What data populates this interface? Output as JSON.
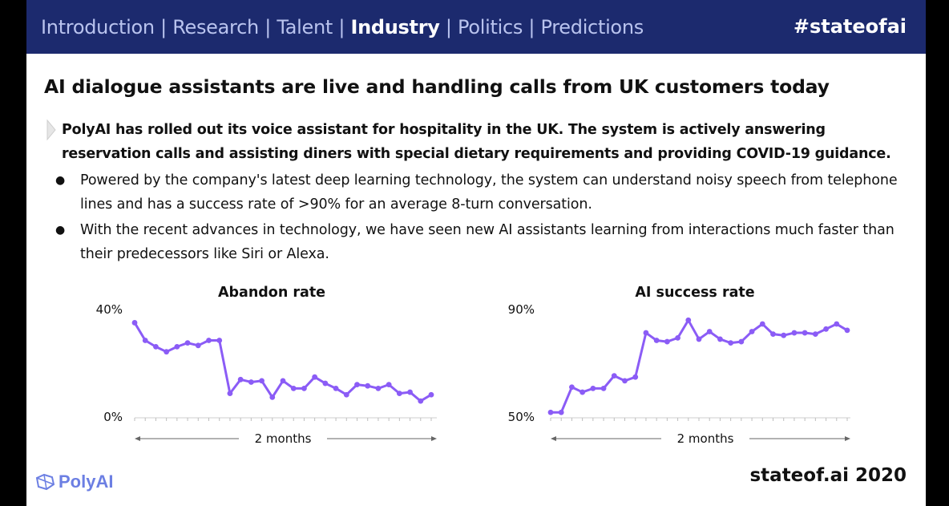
{
  "header": {
    "nav": [
      {
        "label": "Introduction",
        "active": false
      },
      {
        "label": "Research",
        "active": false
      },
      {
        "label": "Talent",
        "active": false
      },
      {
        "label": "Industry",
        "active": true
      },
      {
        "label": "Politics",
        "active": false
      },
      {
        "label": "Predictions",
        "active": false
      }
    ],
    "separator": " | ",
    "hashtag": "#stateofai"
  },
  "title": "AI dialogue assistants are live and handling calls from UK customers today",
  "lead": "PolyAI has rolled out its voice assistant for hospitality in the UK. The system is actively answering reservation calls and assisting diners with special dietary requirements and providing COVID-19 guidance.",
  "bullets": [
    "Powered by the company's latest deep learning technology, the system can understand noisy speech from telephone lines and has a success rate of >90% for an average 8-turn conversation.",
    "With the recent advances in technology, we have seen new AI assistants learning from interactions much faster than their predecessors like Siri or Alexa."
  ],
  "logo_text": "PolyAI",
  "footer": "stateof.ai 2020",
  "colors": {
    "line": "#8b5cf6",
    "header_bg": "#1c2a6e",
    "logo": "#6c7fe3"
  },
  "chart_data": [
    {
      "type": "line",
      "title": "Abandon rate",
      "ytick_labels": [
        "40%",
        "0%"
      ],
      "ylim": [
        0,
        40
      ],
      "x_label": "2 months",
      "values": [
        37,
        30,
        27.5,
        25.5,
        27.5,
        29,
        28,
        30,
        30,
        9,
        14.5,
        13.5,
        14,
        7.5,
        14,
        11,
        11,
        15.5,
        13,
        11,
        8.5,
        12.5,
        12,
        11,
        12.5,
        9,
        9.5,
        6,
        8.5
      ]
    },
    {
      "type": "line",
      "title": "AI success rate",
      "ytick_labels": [
        "90%",
        "50%"
      ],
      "ylim": [
        50,
        90
      ],
      "x_label": "2 months",
      "values": [
        51.5,
        51.5,
        61.5,
        59.5,
        61,
        61,
        66,
        64,
        65.5,
        83,
        80,
        79.5,
        81,
        88,
        80.5,
        83.5,
        80.5,
        79,
        79.5,
        83.5,
        86.5,
        82.5,
        82,
        83,
        83,
        82.5,
        84.5,
        86.5,
        84
      ]
    }
  ]
}
